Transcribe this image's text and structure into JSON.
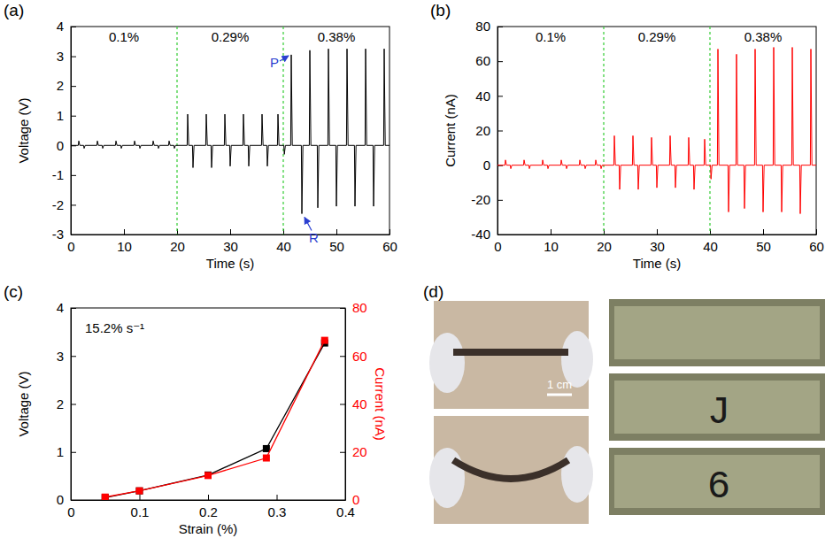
{
  "chart_data": [
    {
      "panel": "(a)",
      "type": "line",
      "x_label": "Time (s)",
      "y_label": "Voltage (V)",
      "xlim": [
        0,
        60
      ],
      "xticks": [
        0,
        10,
        20,
        30,
        40,
        50,
        60
      ],
      "ylim": [
        -3,
        4
      ],
      "yticks": [
        -3,
        -2,
        -1,
        0,
        1,
        2,
        3,
        4
      ],
      "x": [
        0,
        1.4,
        1.5,
        1.7,
        2.4,
        2.5,
        2.7,
        4.9,
        5.0,
        5.2,
        5.9,
        6.0,
        6.2,
        8.4,
        8.5,
        8.7,
        9.4,
        9.5,
        9.7,
        11.9,
        12.0,
        12.2,
        12.9,
        13.0,
        13.2,
        15.4,
        15.5,
        15.7,
        16.4,
        16.5,
        16.7,
        18.4,
        18.5,
        18.7,
        19.4,
        19.5,
        19.7,
        21.9,
        22.0,
        22.2,
        22.9,
        23.0,
        23.2,
        25.4,
        25.5,
        25.7,
        26.4,
        26.5,
        26.7,
        28.9,
        29.0,
        29.2,
        29.9,
        30.0,
        30.2,
        32.4,
        32.5,
        32.7,
        33.4,
        33.5,
        33.7,
        35.9,
        36.0,
        36.2,
        36.9,
        37.0,
        37.2,
        38.9,
        39.0,
        39.2,
        40.1,
        40.2,
        40.4,
        41.4,
        41.5,
        41.7,
        43.4,
        43.5,
        43.7,
        44.9,
        45.0,
        45.2,
        46.4,
        46.5,
        46.7,
        48.4,
        48.5,
        48.7,
        49.9,
        50.0,
        50.2,
        51.9,
        52.0,
        52.2,
        53.4,
        53.5,
        53.7,
        55.4,
        55.5,
        55.7,
        56.9,
        57.0,
        57.2,
        58.9,
        59.0,
        59.2,
        60
      ],
      "series": [
        {
          "color": "#000000",
          "values": [
            0,
            0,
            0.15,
            0,
            0,
            -0.1,
            0,
            0,
            0.15,
            0,
            0,
            -0.1,
            0,
            0,
            0.15,
            0,
            0,
            -0.1,
            0,
            0,
            0.15,
            0,
            0,
            -0.1,
            0,
            0,
            0.15,
            0,
            0,
            -0.1,
            0,
            0,
            0.15,
            0,
            0,
            -0.1,
            0,
            0,
            1.05,
            0,
            0,
            -0.75,
            0,
            0,
            1.05,
            0,
            0,
            -0.75,
            0,
            0,
            1.05,
            0,
            0,
            -0.7,
            0,
            0,
            1.05,
            0,
            0,
            -0.7,
            0,
            0,
            1.05,
            0,
            0,
            -0.7,
            0,
            0,
            1.05,
            0,
            0,
            -0.3,
            0,
            0,
            3.05,
            0,
            0,
            -2.3,
            0,
            0,
            3.2,
            0,
            0,
            -2.1,
            0,
            0,
            3.25,
            0,
            0,
            -2.05,
            0,
            0,
            3.25,
            0,
            0,
            -2.05,
            0,
            0,
            3.25,
            0,
            0,
            -2.05,
            0,
            0,
            3.25,
            0,
            0
          ]
        }
      ],
      "dividers": [
        20,
        40
      ],
      "region_labels": [
        "0.1%",
        "0.29%",
        "0.38%"
      ],
      "annotations": [
        {
          "text": "P",
          "x": 41.5,
          "y": 3.05
        },
        {
          "text": "R",
          "x": 43.5,
          "y": -2.3
        }
      ]
    },
    {
      "panel": "(b)",
      "type": "line",
      "x_label": "Time (s)",
      "y_label": "Current (nA)",
      "xlim": [
        0,
        60
      ],
      "xticks": [
        0,
        10,
        20,
        30,
        40,
        50,
        60
      ],
      "ylim": [
        -40,
        80
      ],
      "yticks": [
        -40,
        -20,
        0,
        20,
        40,
        60,
        80
      ],
      "x": [
        0,
        1.4,
        1.5,
        1.7,
        2.4,
        2.5,
        2.7,
        4.9,
        5.0,
        5.2,
        5.9,
        6.0,
        6.2,
        8.4,
        8.5,
        8.7,
        9.4,
        9.5,
        9.7,
        11.9,
        12.0,
        12.2,
        12.9,
        13.0,
        13.2,
        15.4,
        15.5,
        15.7,
        16.4,
        16.5,
        16.7,
        18.4,
        18.5,
        18.7,
        19.4,
        19.5,
        19.7,
        21.9,
        22.0,
        22.2,
        22.9,
        23.0,
        23.2,
        25.4,
        25.5,
        25.7,
        26.4,
        26.5,
        26.7,
        28.9,
        29.0,
        29.2,
        29.9,
        30.0,
        30.2,
        32.4,
        32.5,
        32.7,
        33.4,
        33.5,
        33.7,
        35.9,
        36.0,
        36.2,
        36.9,
        37.0,
        37.2,
        38.9,
        39.0,
        39.2,
        40.1,
        40.2,
        40.4,
        41.4,
        41.5,
        41.7,
        43.4,
        43.5,
        43.7,
        44.9,
        45.0,
        45.2,
        46.4,
        46.5,
        46.7,
        48.4,
        48.5,
        48.7,
        49.9,
        50.0,
        50.2,
        51.9,
        52.0,
        52.2,
        53.4,
        53.5,
        53.7,
        55.4,
        55.5,
        55.7,
        56.9,
        57.0,
        57.2,
        58.9,
        59.0,
        59.2,
        60
      ],
      "series": [
        {
          "color": "#ff0000",
          "values": [
            0,
            0,
            3,
            0,
            0,
            -2,
            0,
            0,
            3,
            0,
            0,
            -2,
            0,
            0,
            3,
            0,
            0,
            -2,
            0,
            0,
            3,
            0,
            0,
            -2,
            0,
            0,
            3,
            0,
            0,
            -2,
            0,
            0,
            3,
            0,
            0,
            -2,
            0,
            0,
            17,
            0,
            0,
            -14,
            0,
            0,
            17,
            0,
            0,
            -14,
            0,
            0,
            16,
            0,
            0,
            -13,
            0,
            0,
            17,
            0,
            0,
            -13,
            0,
            0,
            16,
            0,
            0,
            -14,
            0,
            0,
            15,
            0,
            0,
            -8,
            0,
            0,
            67,
            0,
            0,
            -27,
            0,
            0,
            64,
            0,
            0,
            -25,
            0,
            0,
            67,
            0,
            0,
            -27,
            0,
            0,
            68,
            0,
            0,
            -27,
            0,
            0,
            68,
            0,
            0,
            -28,
            0,
            0,
            67,
            0,
            0
          ]
        }
      ],
      "dividers": [
        20,
        40
      ],
      "region_labels": [
        "0.1%",
        "0.29%",
        "0.38%"
      ]
    },
    {
      "panel": "(c)",
      "type": "line",
      "x_label": "Strain (%)",
      "y_label": "Voltage (V)",
      "y2_label": "Current (nA)",
      "xlim": [
        0,
        0.4
      ],
      "xticks": [
        0,
        0.1,
        0.2,
        0.3,
        0.4
      ],
      "ylim": [
        0,
        4
      ],
      "yticks": [
        0,
        1,
        2,
        3,
        4
      ],
      "y2lim": [
        0,
        80
      ],
      "y2ticks": [
        0,
        20,
        40,
        60,
        80
      ],
      "x": [
        0.05,
        0.1,
        0.2,
        0.285,
        0.37
      ],
      "series": [
        {
          "color": "#000000",
          "marker": "square",
          "values": [
            0.05,
            0.19,
            0.52,
            1.07,
            3.27
          ]
        },
        {
          "color": "#ff0000",
          "marker": "square",
          "axis": "y2",
          "values": [
            1.2,
            3.8,
            10.2,
            17.5,
            66.5
          ]
        }
      ],
      "annotations": [
        {
          "text": "15.2% s⁻¹"
        }
      ]
    }
  ],
  "panel_d": {
    "panel": "(d)",
    "scale_bar": "1 cm",
    "lcd_readouts": [
      null,
      "J",
      "6"
    ]
  }
}
